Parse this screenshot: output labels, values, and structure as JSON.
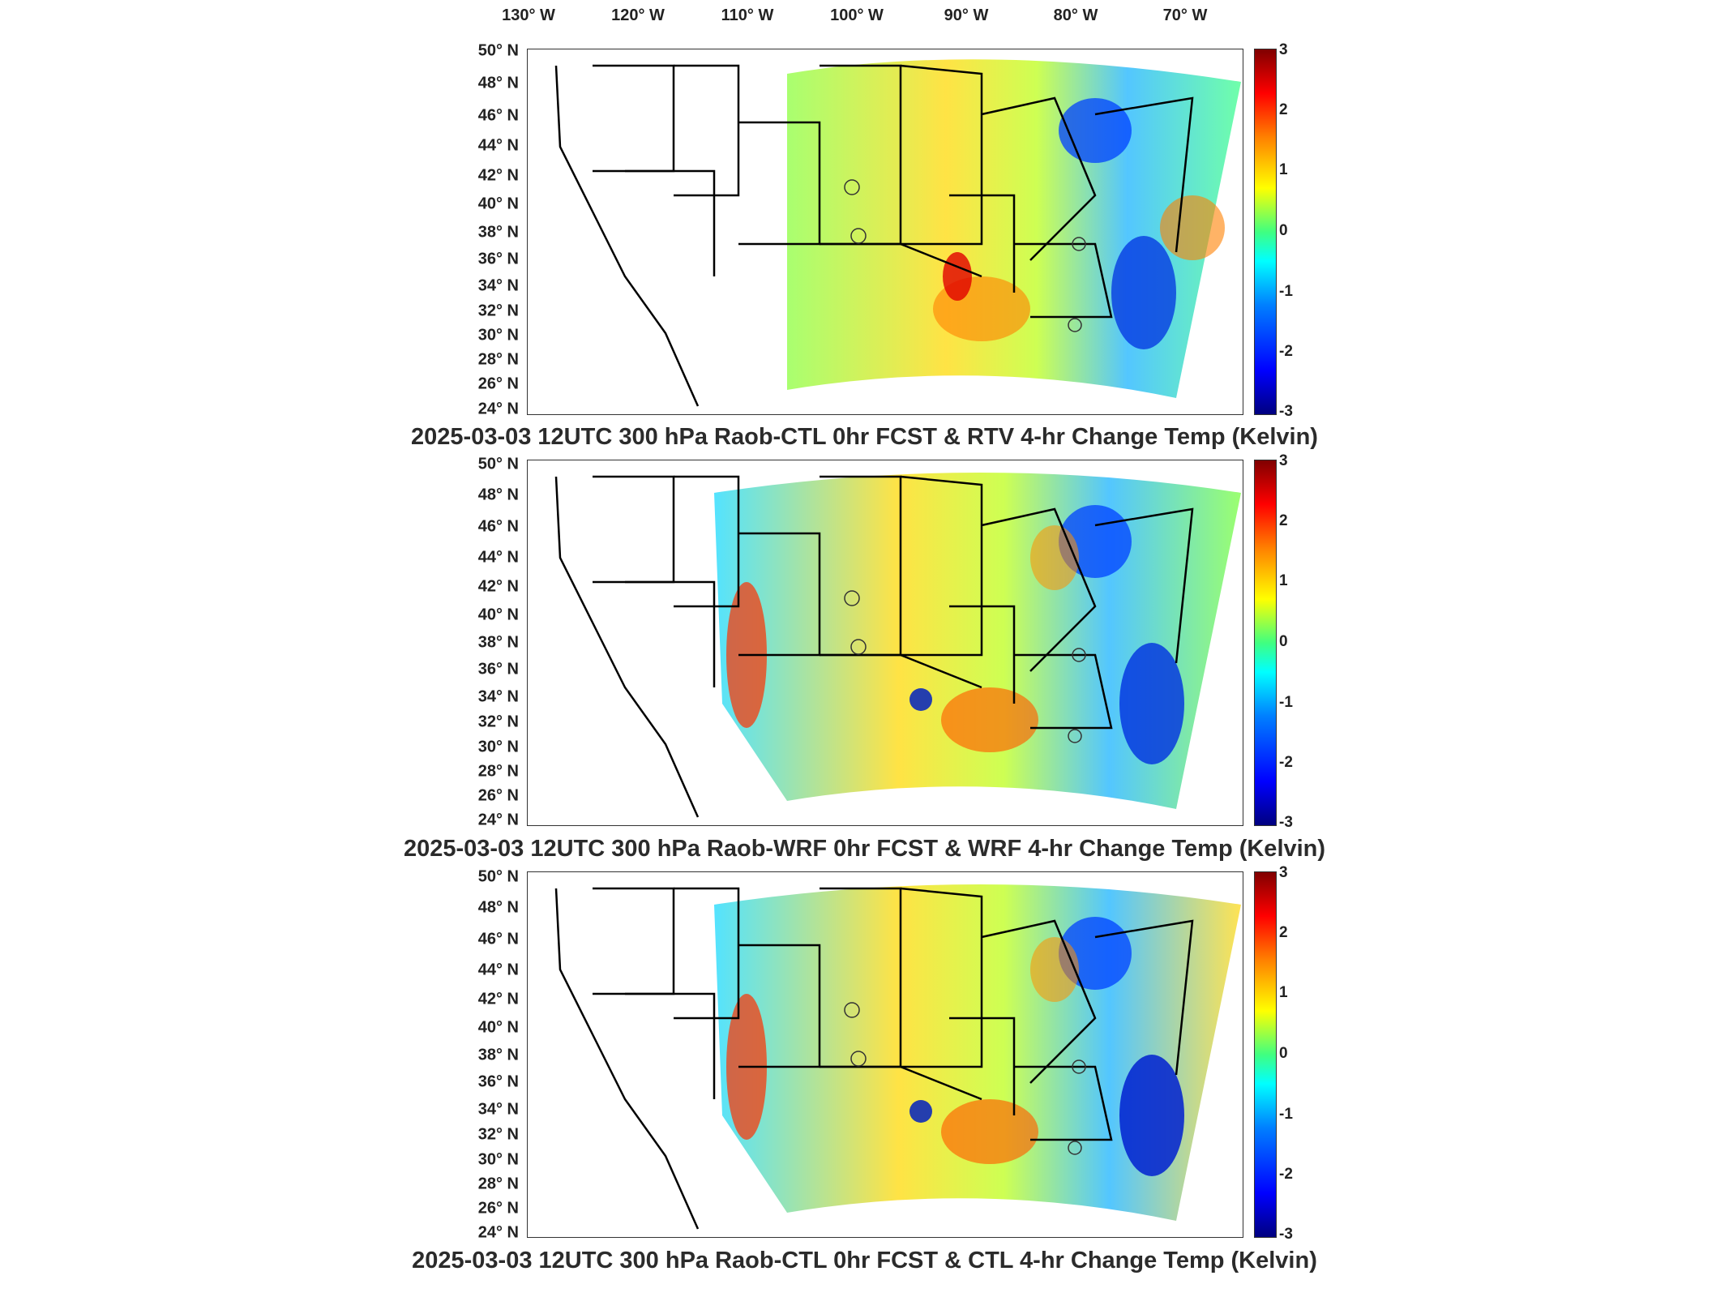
{
  "longitude_labels": [
    "130° W",
    "120° W",
    "110° W",
    "100° W",
    "90° W",
    "80° W",
    "70° W"
  ],
  "latitude_labels": [
    "50° N",
    "48° N",
    "46° N",
    "44° N",
    "42° N",
    "40° N",
    "38° N",
    "36° N",
    "34° N",
    "32° N",
    "30° N",
    "28° N",
    "26° N",
    "24° N"
  ],
  "colorbar_ticks": [
    "3",
    "2",
    "1",
    "0",
    "-1",
    "-2",
    "-3"
  ],
  "panels": [
    {
      "title": "2025-03-03 12UTC 300 hPa Raob-CTL 0hr FCST & RTV 4-hr Change Temp (Kelvin)"
    },
    {
      "title": "2025-03-03 12UTC 300 hPa Raob-WRF 0hr FCST & WRF 4-hr Change Temp (Kelvin)"
    },
    {
      "title": "2025-03-03 12UTC 300 hPa Raob-CTL 0hr FCST & CTL 4-hr Change Temp (Kelvin)"
    }
  ],
  "colormap": {
    "min": -3,
    "max": 3,
    "low_color": "#00007f",
    "zero_color": "#40ff80",
    "high_color": "#800000"
  },
  "map_features": {
    "region": "Contiguous United States",
    "boundaries": "state outlines",
    "markers": "open circles at raob stations"
  }
}
